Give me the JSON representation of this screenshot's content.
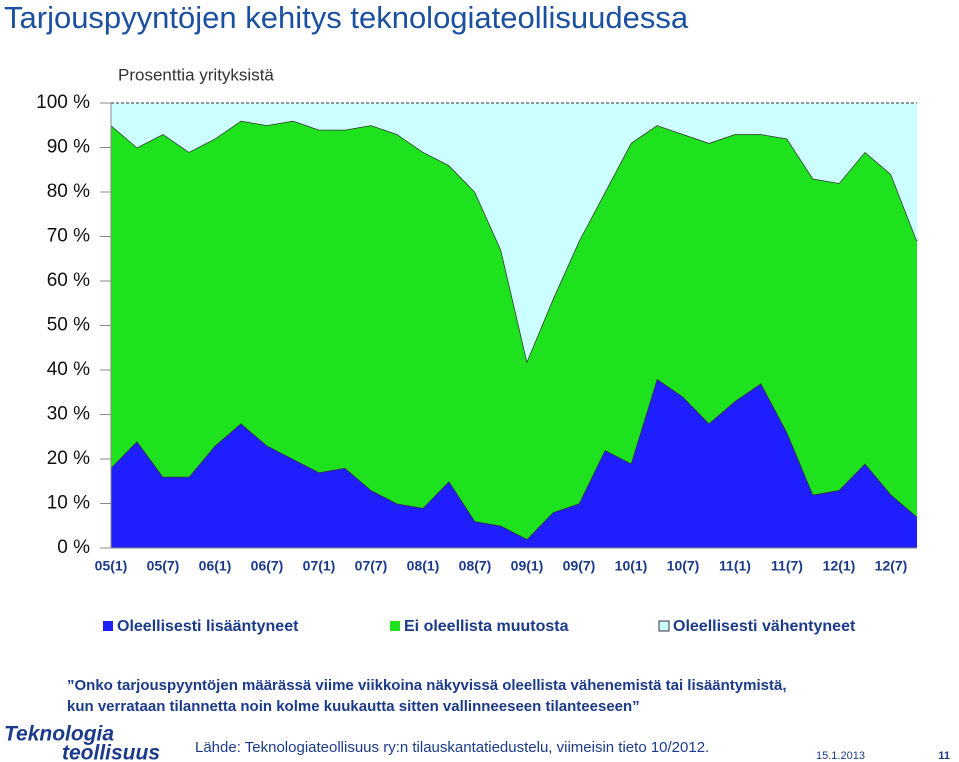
{
  "title": "Tarjouspyyntöjen kehitys teknologiateollisuudessa",
  "chart_data": {
    "type": "stacked_area",
    "subtitle": "Prosenttia yrityksistä",
    "categories": [
      "05(1)",
      null,
      "05(7)",
      null,
      "06(1)",
      null,
      "06(7)",
      null,
      "07(1)",
      null,
      "07(7)",
      null,
      "08(1)",
      null,
      "08(7)",
      null,
      "09(1)",
      null,
      "09(7)",
      null,
      "10(1)",
      null,
      "10(7)",
      null,
      "11(1)",
      null,
      "11(7)",
      null,
      "12(1)",
      null,
      "12(7)",
      null
    ],
    "series": [
      {
        "name": "Oleellisesti lisääntyneet",
        "color": "#1f1fff",
        "values": [
          18,
          24,
          16,
          16,
          23,
          28,
          23,
          20,
          17,
          18,
          13,
          10,
          9,
          15,
          6,
          5,
          2,
          8,
          10,
          22,
          19,
          38,
          34,
          28,
          33,
          37,
          26,
          12,
          13,
          19,
          12,
          7
        ]
      },
      {
        "name": "Ei oleellista muutosta",
        "color": "#1de21d",
        "values": [
          77,
          66,
          77,
          73,
          69,
          68,
          72,
          76,
          77,
          76,
          82,
          83,
          80,
          71,
          74,
          62,
          40,
          48,
          59,
          58,
          72,
          57,
          59,
          63,
          60,
          56,
          66,
          71,
          69,
          70,
          72,
          62
        ]
      },
      {
        "name": "Oleellisesti vähentyneet",
        "color": "#ccffff",
        "values": [
          5,
          10,
          7,
          11,
          8,
          4,
          5,
          4,
          6,
          6,
          5,
          7,
          11,
          14,
          20,
          33,
          58,
          44,
          31,
          20,
          9,
          5,
          7,
          9,
          7,
          7,
          8,
          17,
          18,
          11,
          16,
          31
        ]
      }
    ],
    "ylim": [
      0,
      100
    ],
    "yticks": [
      {
        "value": 0,
        "label": "0 %"
      },
      {
        "value": 10,
        "label": "10 %"
      },
      {
        "value": 20,
        "label": "20 %"
      },
      {
        "value": 30,
        "label": "30 %"
      },
      {
        "value": 40,
        "label": "40 %"
      },
      {
        "value": 50,
        "label": "50 %"
      },
      {
        "value": 60,
        "label": "60 %"
      },
      {
        "value": 70,
        "label": "70 %"
      },
      {
        "value": 80,
        "label": "80 %"
      },
      {
        "value": 90,
        "label": "90 %"
      },
      {
        "value": 100,
        "label": "100 %"
      }
    ],
    "legend": "bottom"
  },
  "question": [
    "”Onko tarjouspyyntöjen määrässä viime viikkoina näkyvissä oleellista vähenemistä tai lisääntymistä,",
    "kun verrataan tilannetta noin kolme kuukautta sitten vallinneeseen tilanteeseen”"
  ],
  "logo": [
    "Teknologia",
    "teollisuus"
  ],
  "source": "Lähde: Teknologiateollisuus ry:n tilauskantatiedustelu, viimeisin tieto 10/2012.",
  "date": "15.1.2013",
  "page": "11"
}
